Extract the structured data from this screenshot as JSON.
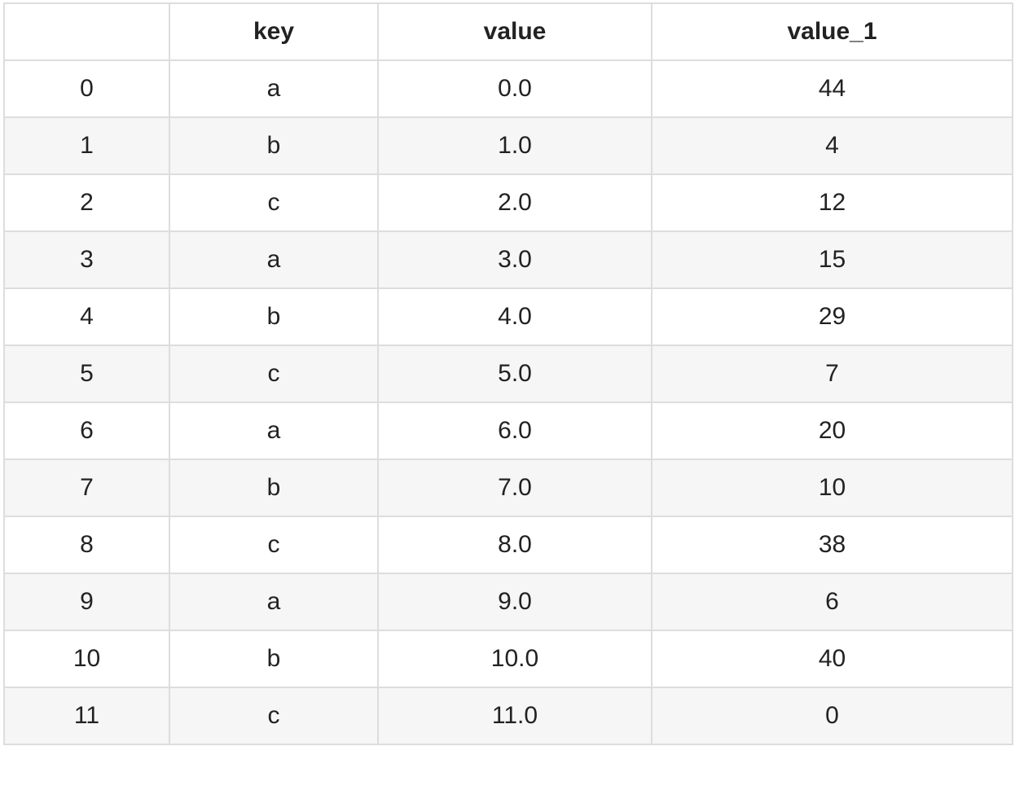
{
  "table": {
    "columns": [
      "",
      "key",
      "value",
      "value_1"
    ],
    "rows": [
      [
        "0",
        "a",
        "0.0",
        "44"
      ],
      [
        "1",
        "b",
        "1.0",
        "4"
      ],
      [
        "2",
        "c",
        "2.0",
        "12"
      ],
      [
        "3",
        "a",
        "3.0",
        "15"
      ],
      [
        "4",
        "b",
        "4.0",
        "29"
      ],
      [
        "5",
        "c",
        "5.0",
        "7"
      ],
      [
        "6",
        "a",
        "6.0",
        "20"
      ],
      [
        "7",
        "b",
        "7.0",
        "10"
      ],
      [
        "8",
        "c",
        "8.0",
        "38"
      ],
      [
        "9",
        "a",
        "9.0",
        "6"
      ],
      [
        "10",
        "b",
        "10.0",
        "40"
      ],
      [
        "11",
        "c",
        "11.0",
        "0"
      ]
    ]
  },
  "colors": {
    "border": "#dddddd",
    "stripe": "#f6f6f6",
    "text": "#222222"
  }
}
